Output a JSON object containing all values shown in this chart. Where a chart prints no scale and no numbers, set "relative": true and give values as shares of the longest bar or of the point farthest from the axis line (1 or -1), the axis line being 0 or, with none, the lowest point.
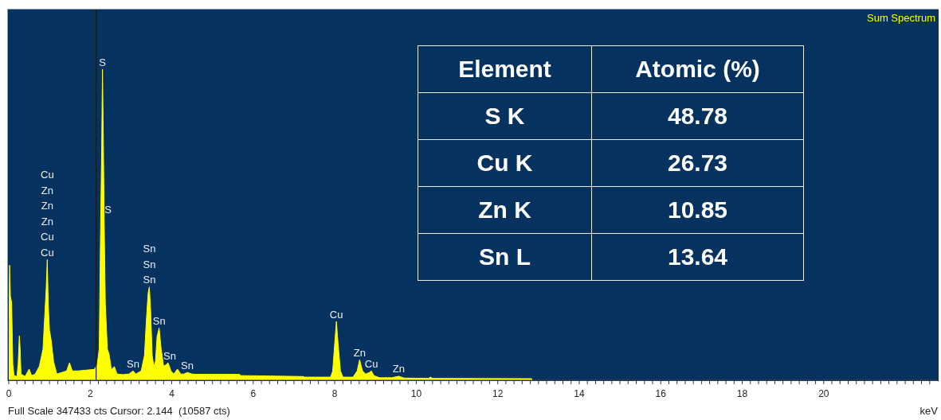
{
  "chart_data": [
    {
      "type": "area",
      "relative": true,
      "legend": "top right",
      "xlabel": "keV",
      "x": [
        0,
        0.02,
        0.04,
        0.07,
        0.1,
        0.13,
        0.2,
        0.23,
        0.26,
        0.28,
        0.3,
        0.4,
        0.5,
        0.56,
        0.65,
        0.75,
        0.84,
        0.88,
        0.92,
        0.945,
        0.97,
        1.0,
        1.04,
        1.1,
        1.18,
        1.3,
        1.42,
        1.49,
        1.56,
        1.7,
        2.1,
        2.17,
        2.22,
        2.25,
        2.28,
        2.3,
        2.32,
        2.34,
        2.37,
        2.42,
        2.46,
        2.52,
        2.59,
        2.66,
        2.8,
        2.95,
        3.05,
        3.12,
        3.25,
        3.33,
        3.38,
        3.42,
        3.45,
        3.48,
        3.52,
        3.56,
        3.6,
        3.64,
        3.69,
        3.74,
        3.8,
        3.86,
        3.91,
        3.98,
        4.05,
        4.14,
        4.22,
        4.3,
        4.38,
        4.5,
        4.61,
        5.66,
        5.7,
        7.22,
        7.26,
        7.9,
        7.95,
        8.0,
        8.04,
        8.08,
        8.14,
        8.2,
        8.45,
        8.55,
        8.61,
        8.68,
        8.76,
        8.85,
        8.9,
        8.96,
        9.1,
        9.4,
        9.57,
        9.7,
        10.3,
        10.35,
        10.4,
        12.83,
        12.85
      ],
      "series": [
        {
          "name": "Sum Spectrum",
          "color": "#ffff00",
          "values": [
            0.1,
            0.37,
            0.27,
            0.25,
            0.05,
            0.015,
            0.012,
            0.05,
            0.143,
            0.1,
            0.02,
            0.012,
            0.036,
            0.015,
            0.02,
            0.045,
            0.1,
            0.2,
            0.3,
            0.388,
            0.24,
            0.16,
            0.13,
            0.06,
            0.02,
            0.025,
            0.03,
            0.056,
            0.03,
            0.03,
            0.035,
            0.05,
            0.1,
            0.45,
            0.745,
            1,
            0.79,
            0.525,
            0.245,
            0.1,
            0.085,
            0.034,
            0.044,
            0.02,
            0.018,
            0.02,
            0.03,
            0.02,
            0.03,
            0.08,
            0.2,
            0.28,
            0.3,
            0.23,
            0.08,
            0.045,
            0.06,
            0.14,
            0.168,
            0.1,
            0.045,
            0.05,
            0.056,
            0.03,
            0.02,
            0.036,
            0.02,
            0.02,
            0.025,
            0.02,
            0.019,
            0.019,
            0.015,
            0.012,
            0.01,
            0.01,
            0.03,
            0.12,
            0.189,
            0.12,
            0.03,
            0.01,
            0.01,
            0.03,
            0.066,
            0.03,
            0.02,
            0.025,
            0.03,
            0.015,
            0.008,
            0.008,
            0.013,
            0.007,
            0.006,
            0.01,
            0.006,
            0.005,
            0
          ]
        }
      ],
      "xlim": [
        0,
        22.8
      ],
      "xticks": [
        0,
        {
          "value": 0.2,
          "label": null
        },
        {
          "value": 0.4,
          "label": null
        },
        {
          "value": 0.6,
          "label": null
        },
        {
          "value": 0.8,
          "label": null
        },
        {
          "value": 1,
          "label": null
        },
        {
          "value": 1.2,
          "label": null
        },
        {
          "value": 1.4,
          "label": null
        },
        {
          "value": 1.6,
          "label": null
        },
        {
          "value": 1.8,
          "label": null
        },
        2,
        {
          "value": 2.2,
          "label": null
        },
        {
          "value": 2.4,
          "label": null
        },
        {
          "value": 2.6,
          "label": null
        },
        {
          "value": 2.8,
          "label": null
        },
        {
          "value": 3,
          "label": null
        },
        {
          "value": 3.2,
          "label": null
        },
        {
          "value": 3.4,
          "label": null
        },
        {
          "value": 3.6,
          "label": null
        },
        {
          "value": 3.8,
          "label": null
        },
        4,
        {
          "value": 4.2,
          "label": null
        },
        {
          "value": 4.4,
          "label": null
        },
        {
          "value": 4.6,
          "label": null
        },
        {
          "value": 4.8,
          "label": null
        },
        {
          "value": 5,
          "label": null
        },
        {
          "value": 5.2,
          "label": null
        },
        {
          "value": 5.4,
          "label": null
        },
        {
          "value": 5.6,
          "label": null
        },
        {
          "value": 5.8,
          "label": null
        },
        6,
        {
          "value": 6.2,
          "label": null
        },
        {
          "value": 6.4,
          "label": null
        },
        {
          "value": 6.6,
          "label": null
        },
        {
          "value": 6.8,
          "label": null
        },
        {
          "value": 7,
          "label": null
        },
        {
          "value": 7.2,
          "label": null
        },
        {
          "value": 7.4,
          "label": null
        },
        {
          "value": 7.6,
          "label": null
        },
        {
          "value": 7.8,
          "label": null
        },
        8,
        {
          "value": 8.2,
          "label": null
        },
        {
          "value": 8.4,
          "label": null
        },
        {
          "value": 8.6,
          "label": null
        },
        {
          "value": 8.8,
          "label": null
        },
        {
          "value": 9,
          "label": null
        },
        {
          "value": 9.2,
          "label": null
        },
        {
          "value": 9.4,
          "label": null
        },
        {
          "value": 9.6,
          "label": null
        },
        {
          "value": 9.8,
          "label": null
        },
        10,
        {
          "value": 10.2,
          "label": null
        },
        {
          "value": 10.4,
          "label": null
        },
        {
          "value": 10.6,
          "label": null
        },
        {
          "value": 10.8,
          "label": null
        },
        {
          "value": 11,
          "label": null
        },
        {
          "value": 11.2,
          "label": null
        },
        {
          "value": 11.4,
          "label": null
        },
        {
          "value": 11.6,
          "label": null
        },
        {
          "value": 11.8,
          "label": null
        },
        12,
        {
          "value": 12.2,
          "label": null
        },
        {
          "value": 12.4,
          "label": null
        },
        {
          "value": 12.6,
          "label": null
        },
        {
          "value": 12.8,
          "label": null
        },
        {
          "value": 13,
          "label": null
        },
        {
          "value": 13.2,
          "label": null
        },
        {
          "value": 13.4,
          "label": null
        },
        {
          "value": 13.6,
          "label": null
        },
        {
          "value": 13.8,
          "label": null
        },
        14,
        {
          "value": 14.2,
          "label": null
        },
        {
          "value": 14.4,
          "label": null
        },
        {
          "value": 14.6,
          "label": null
        },
        {
          "value": 14.8,
          "label": null
        },
        {
          "value": 15,
          "label": null
        },
        {
          "value": 15.2,
          "label": null
        },
        {
          "value": 15.4,
          "label": null
        },
        {
          "value": 15.6,
          "label": null
        },
        {
          "value": 15.8,
          "label": null
        },
        16,
        {
          "value": 16.2,
          "label": null
        },
        {
          "value": 16.4,
          "label": null
        },
        {
          "value": 16.6,
          "label": null
        },
        {
          "value": 16.8,
          "label": null
        },
        {
          "value": 17,
          "label": null
        },
        {
          "value": 17.2,
          "label": null
        },
        {
          "value": 17.4,
          "label": null
        },
        {
          "value": 17.6,
          "label": null
        },
        {
          "value": 17.8,
          "label": null
        },
        18,
        {
          "value": 18.2,
          "label": null
        },
        {
          "value": 18.4,
          "label": null
        },
        {
          "value": 18.6,
          "label": null
        },
        {
          "value": 18.8,
          "label": null
        },
        {
          "value": 19,
          "label": null
        },
        {
          "value": 19.2,
          "label": null
        },
        {
          "value": 19.4,
          "label": null
        },
        {
          "value": 19.6,
          "label": null
        },
        {
          "value": 19.8,
          "label": null
        },
        20,
        {
          "value": 20.2,
          "label": null
        },
        {
          "value": 20.4,
          "label": null
        },
        {
          "value": 20.6,
          "label": null
        },
        {
          "value": 20.8,
          "label": null
        },
        {
          "value": 21,
          "label": null
        },
        {
          "value": 21.2,
          "label": null
        },
        {
          "value": 21.4,
          "label": null
        },
        {
          "value": 21.6,
          "label": null
        },
        {
          "value": 21.8,
          "label": null
        },
        {
          "value": 22,
          "label": null
        },
        {
          "value": 22.2,
          "label": null
        },
        {
          "value": 22.4,
          "label": null
        },
        {
          "value": 22.6,
          "label": null
        }
      ],
      "ref_lines": [
        {
          "axis": "x",
          "value": 2.144,
          "color": "#1a1a1a"
        }
      ],
      "annotations": [
        "Full Scale 347433 cts Cursor: 2.144  (10587 cts)",
        {
          "text": "S",
          "x": 2.3,
          "y": 1
        },
        {
          "text": "S",
          "x": 2.34,
          "y": 0.525
        },
        {
          "text": "Cu",
          "x": 0.945,
          "y": 0.388
        },
        {
          "text": "Cu",
          "x": 0.945,
          "y": 0.388
        },
        "Zn",
        "Zn",
        "Zn",
        "Cu",
        {
          "text": "Sn",
          "x": 3.45,
          "y": 0.3
        },
        {
          "text": "Sn",
          "x": 3.45,
          "y": 0.3
        },
        "Sn",
        {
          "text": "Sn",
          "x": 3.69,
          "y": 0.168
        },
        {
          "text": "Sn",
          "x": 3.91,
          "y": 0.056
        },
        {
          "text": "Sn",
          "x": 4.38,
          "y": 0.025
        },
        {
          "text": "Sn",
          "x": 3.05,
          "y": 0.03
        },
        {
          "text": "Cu",
          "x": 8.04,
          "y": 0.189
        },
        {
          "text": "Zn",
          "x": 8.61,
          "y": 0.066
        },
        {
          "text": "Cu",
          "x": 8.9,
          "y": 0.03
        },
        {
          "text": "Zn",
          "x": 9.57,
          "y": 0.013
        }
      ]
    },
    {
      "type": "other",
      "xlabel": "Element",
      "ylabel": "Atomic (%)",
      "categories": [
        "S K",
        "Cu K",
        "Zn K",
        "Sn L"
      ],
      "values": [
        48.78,
        26.73,
        10.85,
        13.64
      ],
      "data_labels": true
    }
  ]
}
